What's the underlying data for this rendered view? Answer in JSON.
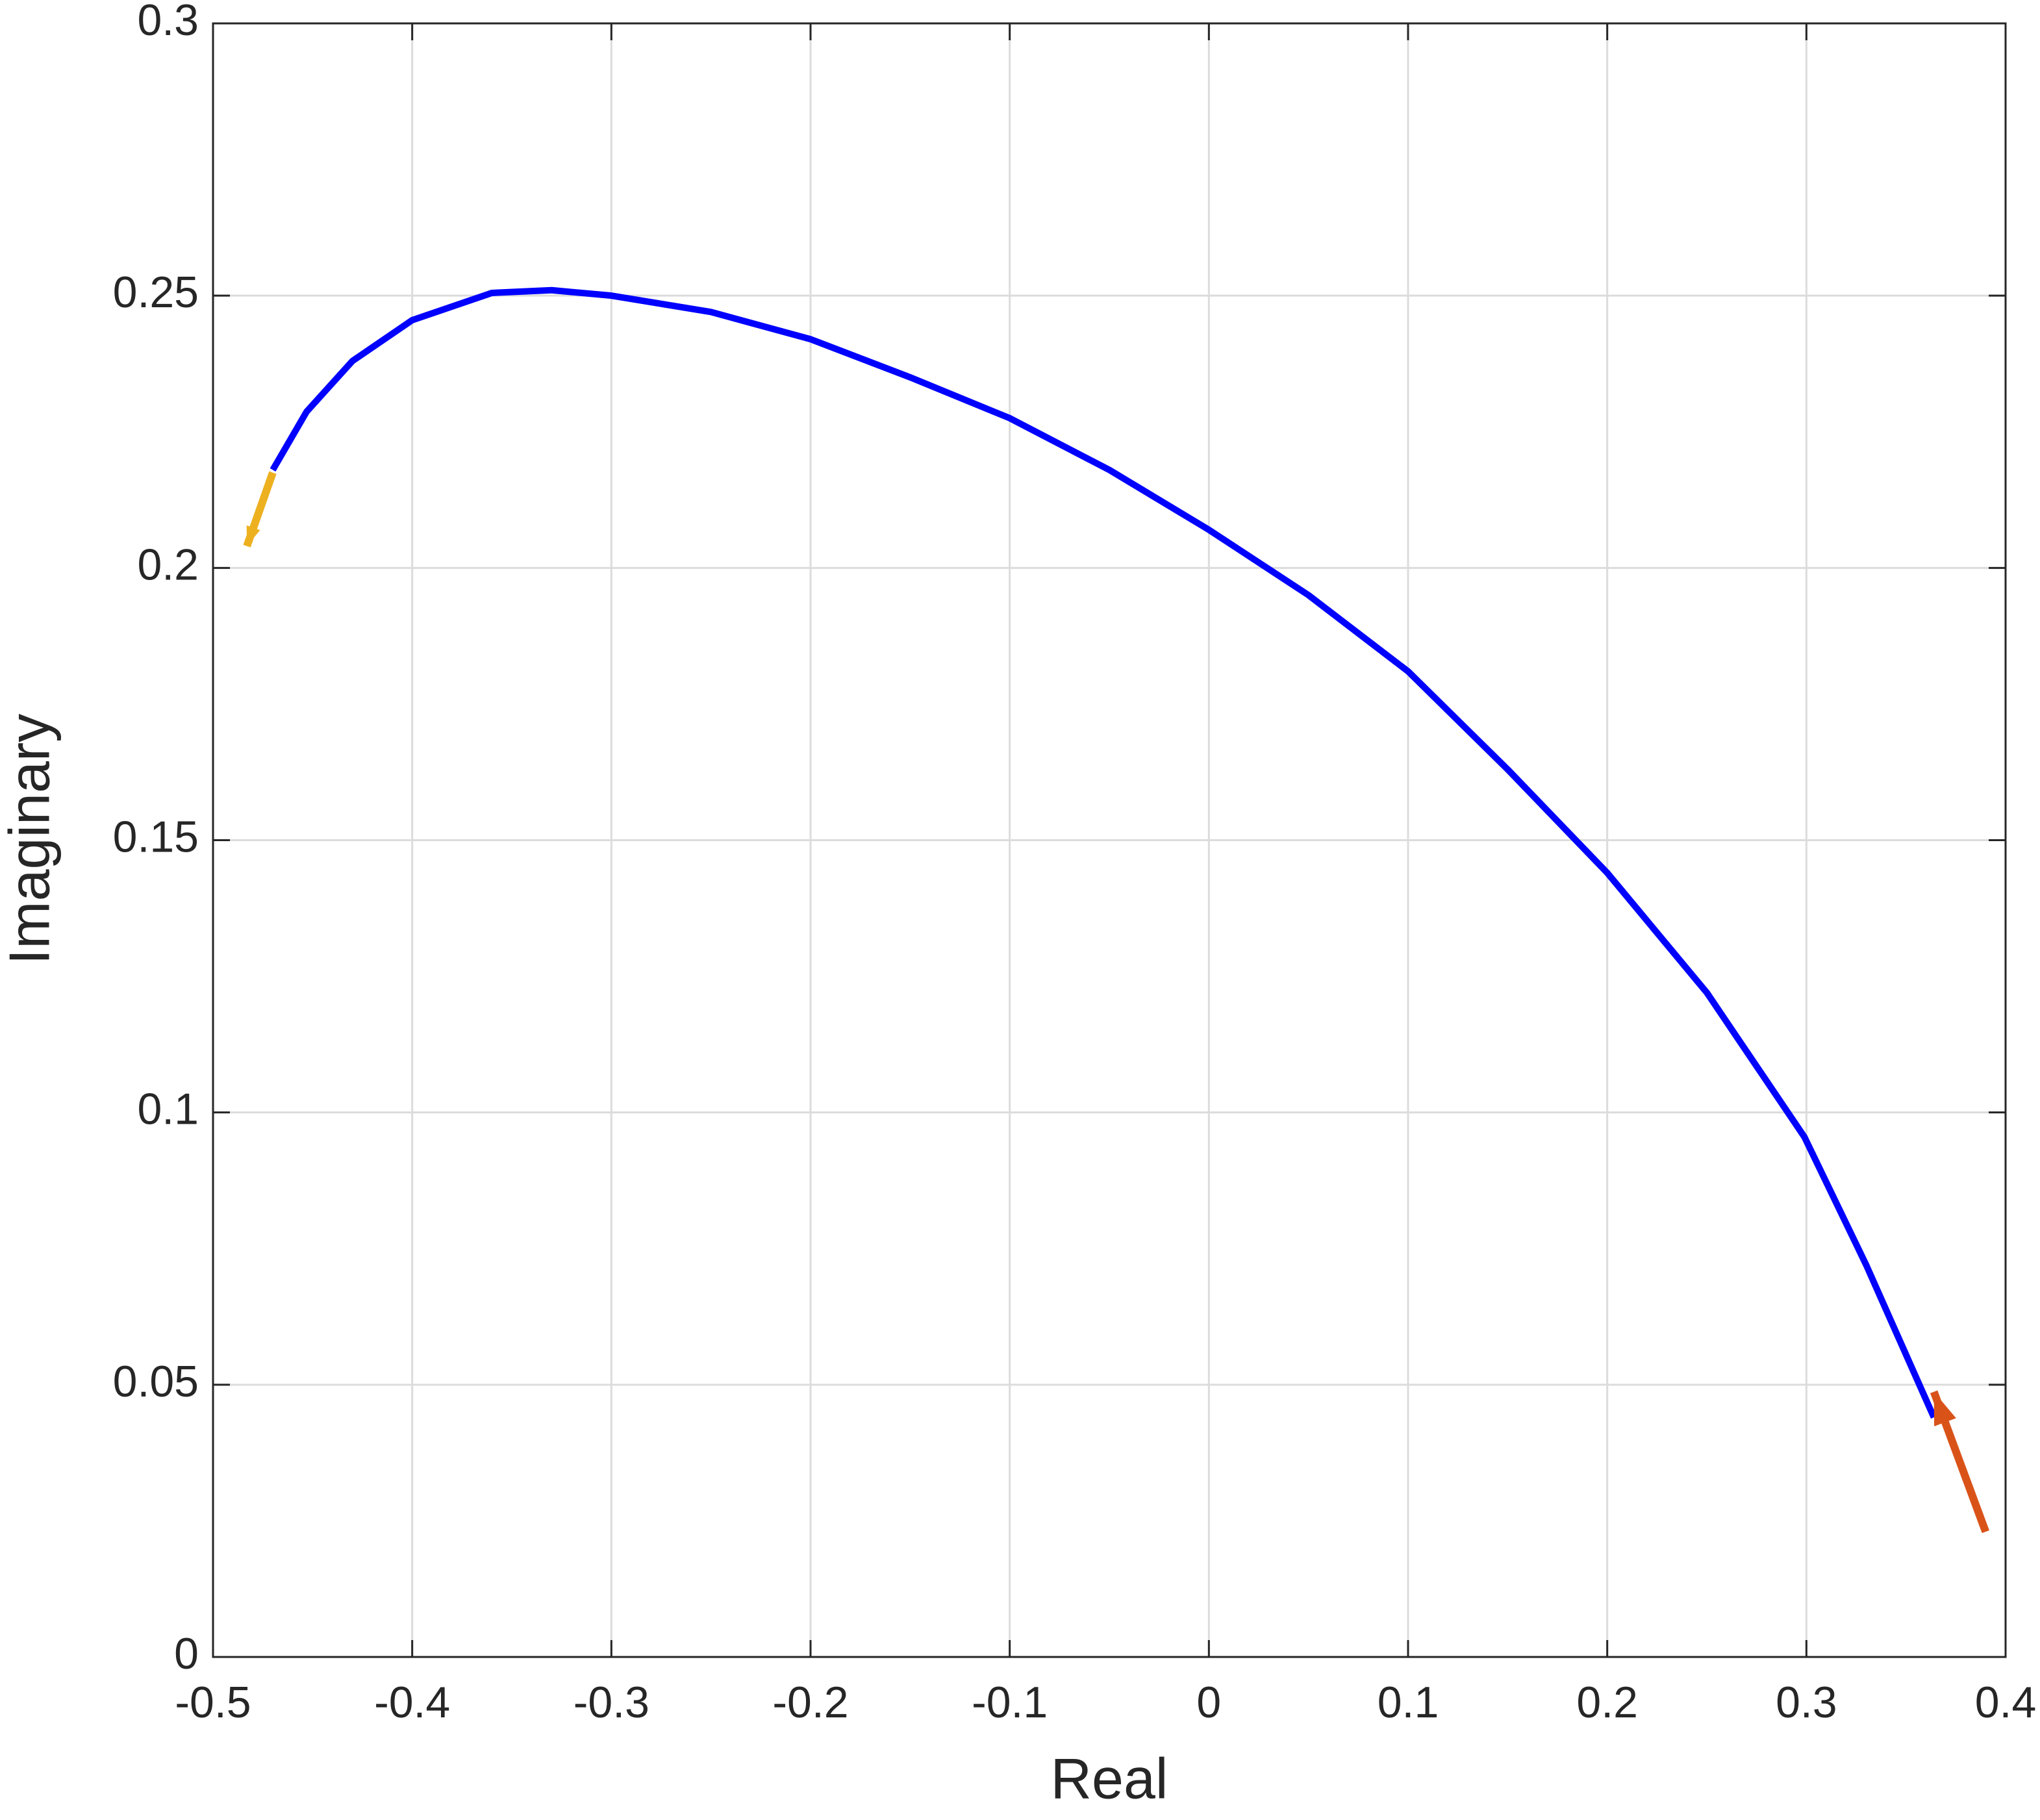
{
  "chart_data": {
    "type": "line",
    "arrows": true,
    "grid": true,
    "xlabel": "Real",
    "ylabel": "Imaginary",
    "xlim": [
      -0.5,
      0.4
    ],
    "ylim": [
      0,
      0.3
    ],
    "xticks": [
      -0.5,
      -0.4,
      -0.3,
      -0.2,
      -0.1,
      0,
      0.1,
      0.2,
      0.3,
      0.4
    ],
    "yticks": [
      0,
      0.05,
      0.1,
      0.15,
      0.2,
      0.25,
      0.3
    ],
    "series": [
      {
        "color": "#0000ff",
        "x": [
          0.364,
          0.33,
          0.299,
          0.25,
          0.2,
          0.15,
          0.1,
          0.05,
          0.0,
          -0.05,
          -0.1,
          -0.15,
          -0.2,
          -0.25,
          -0.3,
          -0.33,
          -0.36,
          -0.4,
          -0.43,
          -0.453,
          -0.47
        ],
        "values": [
          0.044,
          0.072,
          0.0955,
          0.122,
          0.144,
          0.163,
          0.181,
          0.195,
          0.207,
          0.218,
          0.2275,
          0.235,
          0.242,
          0.247,
          0.25,
          0.251,
          0.2505,
          0.2455,
          0.238,
          0.2287,
          0.218
        ]
      },
      {
        "color": "#edb120",
        "x": [
          -0.47,
          -0.483
        ],
        "values": [
          0.2175,
          0.204
        ]
      },
      {
        "color": "#d95319",
        "x": [
          0.39,
          0.364
        ],
        "values": [
          0.023,
          0.0487
        ]
      }
    ]
  }
}
